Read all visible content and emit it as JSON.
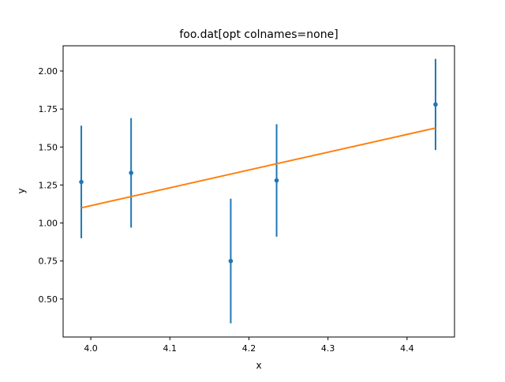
{
  "chart_data": {
    "type": "scatter",
    "title": "foo.dat[opt colnames=none]",
    "xlabel": "x",
    "ylabel": "y",
    "xlim": [
      3.965,
      4.46
    ],
    "ylim": [
      0.25,
      2.166
    ],
    "xticks": [
      4.0,
      4.1,
      4.2,
      4.3,
      4.4
    ],
    "xtick_labels": [
      "4.0",
      "4.1",
      "4.2",
      "4.3",
      "4.4"
    ],
    "yticks": [
      0.5,
      0.75,
      1.0,
      1.25,
      1.5,
      1.75,
      2.0
    ],
    "ytick_labels": [
      "0.50",
      "0.75",
      "1.00",
      "1.25",
      "1.50",
      "1.75",
      "2.00"
    ],
    "grid": false,
    "series": [
      {
        "type": "errorbar",
        "color": "#1f77b4",
        "x": [
          3.988,
          4.051,
          4.177,
          4.235,
          4.436
        ],
        "y": [
          1.27,
          1.33,
          0.75,
          1.28,
          1.78
        ],
        "yerr": [
          0.37,
          0.36,
          0.41,
          0.37,
          0.3
        ]
      },
      {
        "type": "line",
        "color": "#ff7f0e",
        "x": [
          3.988,
          4.051,
          4.177,
          4.235,
          4.436
        ],
        "y": [
          1.1,
          1.174,
          1.322,
          1.39,
          1.625
        ]
      }
    ]
  }
}
